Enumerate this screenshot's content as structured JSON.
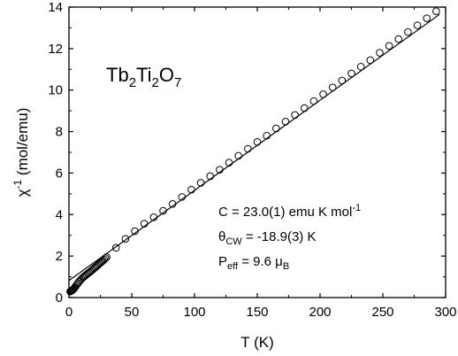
{
  "chart_data": {
    "type": "scatter",
    "compound": {
      "base": [
        "Tb",
        "Ti",
        "O"
      ],
      "subs": [
        "2",
        "2",
        "7"
      ]
    },
    "xlabel": "T (K)",
    "ylabel": {
      "base": "χ",
      "sup": "-1",
      "rest": " (mol/emu)"
    },
    "xlim": [
      0,
      300
    ],
    "ylim": [
      0,
      14
    ],
    "x_ticks": [
      0,
      50,
      100,
      150,
      200,
      250,
      300
    ],
    "y_ticks": [
      0,
      2,
      4,
      6,
      8,
      10,
      12,
      14
    ],
    "grid": false,
    "legend": "none",
    "annotations": {
      "curie": {
        "text": "C = 23.0(1) emu K mol",
        "sup": "-1"
      },
      "theta": {
        "sym": "θ",
        "sub": "CW",
        "text": " = -18.9(3) K"
      },
      "peff": {
        "sym": "P",
        "sub": "eff",
        "text": " = 9.6 μ",
        "sub2": "B"
      }
    },
    "series": [
      {
        "marker": "open-circle",
        "x": [
          1.0,
          1.5,
          2.0,
          2.5,
          3.0,
          3.5,
          4.0,
          4.5,
          5.0,
          6,
          7,
          8,
          9,
          10,
          11,
          12,
          13,
          14,
          15,
          16,
          17,
          18,
          19,
          20,
          21,
          22,
          23,
          24,
          25,
          26,
          27,
          28,
          29,
          30,
          37.5,
          45,
          52.5,
          60,
          67.5,
          75,
          82.5,
          90,
          97.5,
          105,
          112.5,
          120,
          127.5,
          135,
          142.5,
          150,
          157.5,
          165,
          172.5,
          180,
          187.5,
          195,
          202.5,
          210,
          217.5,
          225,
          232.5,
          240,
          247.5,
          255,
          262.5,
          270,
          277.5,
          285,
          292.5
        ],
        "y": [
          0.29,
          0.31,
          0.33,
          0.35,
          0.37,
          0.4,
          0.43,
          0.47,
          0.52,
          0.6,
          0.68,
          0.76,
          0.83,
          0.9,
          0.96,
          1.01,
          1.06,
          1.11,
          1.16,
          1.2,
          1.25,
          1.3,
          1.35,
          1.41,
          1.46,
          1.51,
          1.56,
          1.62,
          1.67,
          1.72,
          1.78,
          1.83,
          1.89,
          1.95,
          2.4,
          2.83,
          3.2,
          3.56,
          3.87,
          4.18,
          4.51,
          4.85,
          5.2,
          5.53,
          5.85,
          6.16,
          6.5,
          6.83,
          7.17,
          7.5,
          7.8,
          8.15,
          8.48,
          8.8,
          9.13,
          9.47,
          9.8,
          10.13,
          10.46,
          10.8,
          11.13,
          11.44,
          11.8,
          12.13,
          12.46,
          12.8,
          13.12,
          13.46,
          13.8
        ]
      }
    ],
    "fit_line": {
      "style": "solid",
      "x": [
        0,
        295
      ],
      "y": [
        0.82,
        13.64
      ]
    }
  }
}
